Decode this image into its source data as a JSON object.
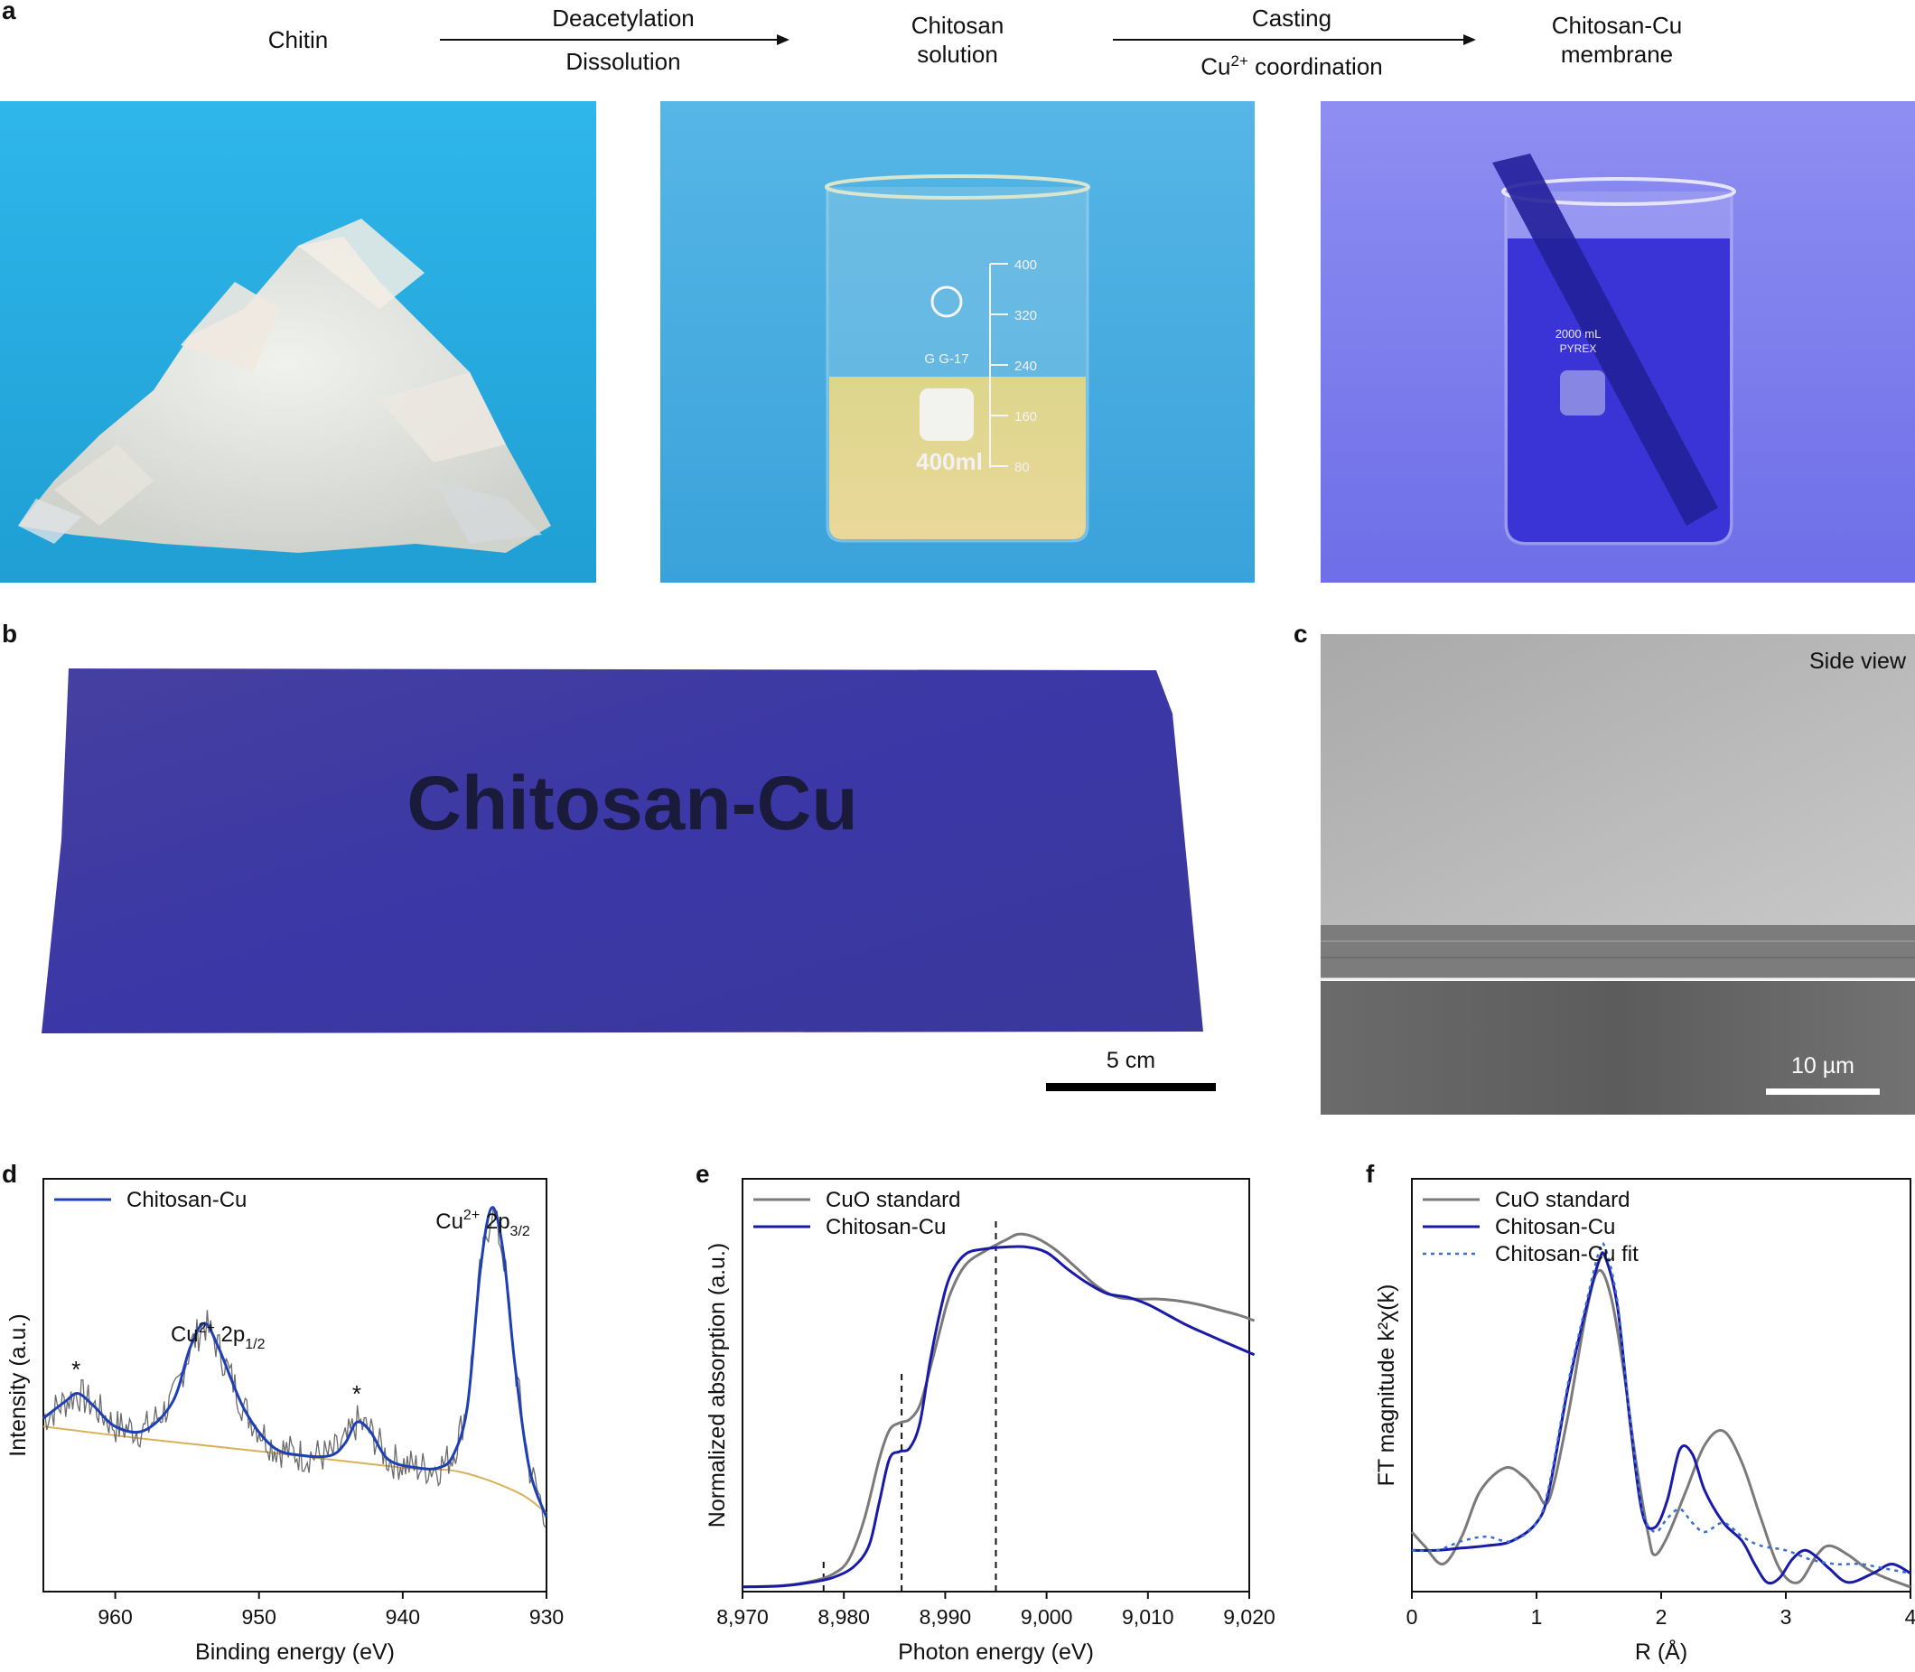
{
  "panel_labels": {
    "a": "a",
    "b": "b",
    "c": "c",
    "d": "d",
    "e": "e",
    "f": "f"
  },
  "flow": {
    "step1": "Chitin",
    "arrow1_top": "Deacetylation",
    "arrow1_bottom": "Dissolution",
    "step2_l1": "Chitosan",
    "step2_l2": "solution",
    "arrow2_top": "Casting",
    "arrow2_bottom_pre": "Cu",
    "arrow2_bottom_sup": "2+",
    "arrow2_bottom_post": " coordination",
    "step3_l1": "Chitosan-Cu",
    "step3_l2": "membrane"
  },
  "photo_text": {
    "beaker_volume": "400ml",
    "beaker_marks": [
      "400",
      "320",
      "240",
      "160",
      "80"
    ],
    "beaker_brand": "G G-17",
    "pyrex_volume": "2000 mL",
    "pyrex_brand": "PYREX",
    "membrane_text": "Chitosan-Cu"
  },
  "scale_bars": {
    "b": "5 cm",
    "c": "10 µm"
  },
  "sem_label": "Side view",
  "colors": {
    "chitin_bg": "#2fb2e4",
    "chitosan_bg": "#4aaee0",
    "membrane_bg": "#7272ee",
    "membrane": "#3b3aa8",
    "blue": "#1f3fb5",
    "navy": "#1a1aa8",
    "gray": "#7a7a7a",
    "baseline": "#d8b25a"
  },
  "chart_data": [
    {
      "panel": "d",
      "type": "line",
      "xlabel": "Binding energy (eV)",
      "ylabel": "Intensity (a.u.)",
      "xlim": [
        965,
        930
      ],
      "x_reversed": true,
      "xticks": [
        960,
        950,
        940,
        930
      ],
      "legend": [
        "Chitosan-Cu"
      ],
      "legend_position": "top-left",
      "annotations": [
        {
          "text": "Cu",
          "sup": "2+",
          "rest": " 2p",
          "sub": "3/2",
          "x": 933.8
        },
        {
          "text": "Cu",
          "sup": "2+",
          "rest": " 2p",
          "sub": "1/2",
          "x": 953.8
        },
        {
          "text": "*",
          "x": 962.6
        },
        {
          "text": "*",
          "x": 943.2
        }
      ],
      "series": [
        {
          "name": "Chitosan-Cu",
          "color": "#1f3fb5",
          "x": [
            965,
            963.5,
            962.6,
            961.5,
            960,
            958,
            956,
            954.8,
            953.8,
            952.8,
            951,
            949,
            947,
            945,
            944,
            943.2,
            942.3,
            941,
            939,
            937.5,
            936.5,
            935.5,
            934.6,
            933.8,
            933,
            932.2,
            931.2,
            930
          ],
          "y": [
            0.42,
            0.46,
            0.48,
            0.45,
            0.4,
            0.39,
            0.46,
            0.59,
            0.65,
            0.59,
            0.44,
            0.35,
            0.33,
            0.33,
            0.36,
            0.41,
            0.39,
            0.32,
            0.3,
            0.3,
            0.33,
            0.45,
            0.78,
            0.93,
            0.82,
            0.55,
            0.3,
            0.18
          ]
        }
      ]
    },
    {
      "panel": "e",
      "type": "line",
      "xlabel": "Photon energy (eV)",
      "ylabel": "Normalized absorption (a.u.)",
      "xlim": [
        8970,
        9020
      ],
      "ylim": [
        0,
        1.15
      ],
      "xticks": [
        "8,970",
        "8,980",
        "8,990",
        "9,000",
        "9,010",
        "9,020"
      ],
      "xtick_values": [
        8970,
        8980,
        8990,
        9000,
        9010,
        9020
      ],
      "dashed_lines": [
        8978,
        8985.7,
        8995
      ],
      "legend": [
        "CuO standard",
        "Chitosan-Cu"
      ],
      "legend_position": "top-left",
      "series": [
        {
          "name": "CuO standard",
          "color": "#7a7a7a",
          "x": [
            8970,
            8974,
            8977,
            8979,
            8980.5,
            8982,
            8983.5,
            8984.5,
            8985.5,
            8986.5,
            8987.5,
            8988.5,
            8989.5,
            8990.5,
            8992,
            8994,
            8996,
            8997.3,
            8999,
            9001,
            9003,
            9005,
            9007,
            9009,
            9011,
            9013,
            9015,
            9017,
            9019,
            9020.5
          ],
          "y": [
            0.013,
            0.017,
            0.03,
            0.05,
            0.09,
            0.2,
            0.37,
            0.45,
            0.47,
            0.48,
            0.52,
            0.62,
            0.73,
            0.83,
            0.91,
            0.95,
            0.98,
            0.996,
            0.985,
            0.95,
            0.9,
            0.85,
            0.82,
            0.815,
            0.815,
            0.81,
            0.8,
            0.785,
            0.77,
            0.755
          ]
        },
        {
          "name": "Chitosan-Cu",
          "color": "#1a1aa8",
          "x": [
            8970,
            8974,
            8977,
            8979,
            8981,
            8982.5,
            8983.5,
            8984.5,
            8985.5,
            8986.5,
            8987.5,
            8988.5,
            8989.5,
            8990.5,
            8992,
            8994,
            8996,
            8998,
            9000,
            9002,
            9004,
            9006,
            9008,
            9010,
            9012,
            9014,
            9016,
            9018,
            9020.5
          ],
          "y": [
            0.013,
            0.016,
            0.027,
            0.04,
            0.07,
            0.13,
            0.25,
            0.37,
            0.39,
            0.4,
            0.47,
            0.64,
            0.78,
            0.88,
            0.94,
            0.955,
            0.96,
            0.96,
            0.945,
            0.9,
            0.86,
            0.83,
            0.82,
            0.8,
            0.77,
            0.74,
            0.715,
            0.69,
            0.66
          ]
        }
      ]
    },
    {
      "panel": "f",
      "type": "line",
      "xlabel": "R (Å)",
      "ylabel": "FT magnitude k²χ(k)",
      "xlim": [
        0,
        4
      ],
      "xticks": [
        0,
        1,
        2,
        3,
        4
      ],
      "legend": [
        "CuO standard",
        "Chitosan-Cu",
        "Chitosan-Cu fit"
      ],
      "legend_position": "top-left",
      "series": [
        {
          "name": "CuO standard",
          "color": "#7a7a7a",
          "x": [
            0,
            0.1,
            0.25,
            0.4,
            0.55,
            0.75,
            0.9,
            1.0,
            1.1,
            1.25,
            1.4,
            1.5,
            1.6,
            1.7,
            1.8,
            1.9,
            1.95,
            2.05,
            2.2,
            2.35,
            2.5,
            2.65,
            2.8,
            2.95,
            3.1,
            3.25,
            3.35,
            3.5,
            3.65,
            3.8,
            4.0
          ],
          "y": [
            0.13,
            0.1,
            0.06,
            0.12,
            0.22,
            0.27,
            0.25,
            0.22,
            0.2,
            0.38,
            0.61,
            0.7,
            0.64,
            0.48,
            0.28,
            0.12,
            0.08,
            0.12,
            0.22,
            0.32,
            0.35,
            0.28,
            0.16,
            0.05,
            0.02,
            0.08,
            0.1,
            0.08,
            0.05,
            0.03,
            0.01
          ]
        },
        {
          "name": "Chitosan-Cu",
          "color": "#1a1aa8",
          "x": [
            0,
            0.2,
            0.4,
            0.6,
            0.8,
            1.0,
            1.1,
            1.25,
            1.4,
            1.5,
            1.55,
            1.65,
            1.75,
            1.85,
            1.95,
            2.05,
            2.15,
            2.25,
            2.35,
            2.5,
            2.65,
            2.75,
            2.85,
            2.95,
            3.05,
            3.15,
            3.25,
            3.35,
            3.5,
            3.7,
            3.85,
            4.0
          ],
          "y": [
            0.09,
            0.09,
            0.095,
            0.1,
            0.11,
            0.15,
            0.22,
            0.44,
            0.62,
            0.72,
            0.73,
            0.62,
            0.37,
            0.17,
            0.14,
            0.2,
            0.31,
            0.3,
            0.22,
            0.15,
            0.11,
            0.06,
            0.02,
            0.03,
            0.07,
            0.09,
            0.075,
            0.05,
            0.02,
            0.04,
            0.06,
            0.04
          ]
        },
        {
          "name": "Chitosan-Cu fit",
          "color": "#3a6fd1",
          "dashed": true,
          "x": [
            0,
            0.2,
            0.4,
            0.6,
            0.8,
            1.0,
            1.1,
            1.25,
            1.4,
            1.5,
            1.55,
            1.65,
            1.75,
            1.85,
            1.95,
            2.05,
            2.15,
            2.25,
            2.35,
            2.5,
            2.65,
            2.8,
            3.0,
            3.2,
            3.4,
            3.6,
            3.8,
            4.0
          ],
          "y": [
            0.09,
            0.09,
            0.11,
            0.12,
            0.11,
            0.15,
            0.23,
            0.45,
            0.63,
            0.74,
            0.75,
            0.63,
            0.38,
            0.18,
            0.13,
            0.16,
            0.18,
            0.15,
            0.13,
            0.15,
            0.12,
            0.1,
            0.09,
            0.07,
            0.06,
            0.06,
            0.05,
            0.04
          ]
        }
      ]
    }
  ]
}
